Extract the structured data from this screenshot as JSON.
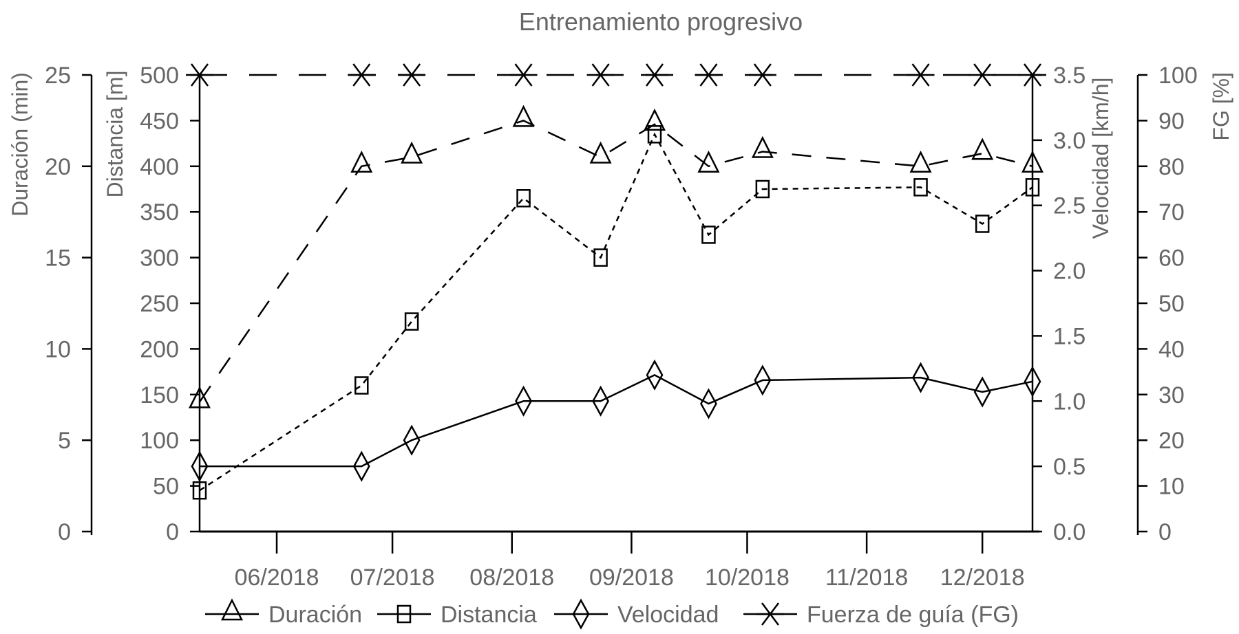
{
  "chart_data": {
    "type": "line",
    "title": "Entrenamiento progresivo",
    "x": [
      "2018-05-12",
      "2018-06-23",
      "2018-07-06",
      "2018-08-04",
      "2018-08-24",
      "2018-09-07",
      "2018-09-21",
      "2018-10-05",
      "2018-11-15",
      "2018-12-01",
      "2018-12-14"
    ],
    "xlim": [
      "2018-05-12",
      "2018-12-14"
    ],
    "xticks": [
      {
        "date": "2018-06-01",
        "label": "06/2018"
      },
      {
        "date": "2018-07-01",
        "label": "07/2018"
      },
      {
        "date": "2018-08-01",
        "label": "08/2018"
      },
      {
        "date": "2018-09-01",
        "label": "09/2018"
      },
      {
        "date": "2018-10-01",
        "label": "10/2018"
      },
      {
        "date": "2018-11-01",
        "label": "11/2018"
      },
      {
        "date": "2018-12-01",
        "label": "12/2018"
      }
    ],
    "axes": [
      {
        "id": "dur",
        "label": "Duración (min)",
        "ylim": [
          0,
          25
        ],
        "ticks": [
          "0",
          "5",
          "10",
          "15",
          "20",
          "25"
        ],
        "side": "left-outer"
      },
      {
        "id": "dist",
        "label": "Distancia [m]",
        "ylim": [
          0,
          500
        ],
        "ticks": [
          "0",
          "50",
          "100",
          "150",
          "200",
          "250",
          "300",
          "350",
          "400",
          "450",
          "500"
        ],
        "side": "left-inner"
      },
      {
        "id": "vel",
        "label": "Velocidad [km/h]",
        "ylim": [
          0,
          3.5
        ],
        "ticks": [
          "0.0",
          "0.5",
          "1.0",
          "1.5",
          "2.0",
          "2.5",
          "3.0",
          "3.5"
        ],
        "side": "right-inner"
      },
      {
        "id": "fg",
        "label": "FG [%]",
        "ylim": [
          0,
          100
        ],
        "ticks": [
          "0",
          "10",
          "20",
          "30",
          "40",
          "50",
          "60",
          "70",
          "80",
          "90",
          "100"
        ],
        "side": "right-outer"
      }
    ],
    "series": [
      {
        "name": "Duración",
        "axis": "dur",
        "marker": "triangle",
        "dash": "long",
        "values": [
          7.1,
          20,
          20.5,
          22.5,
          20.5,
          22.3,
          20,
          20.8,
          20,
          20.7,
          20
        ]
      },
      {
        "name": "Distancia",
        "axis": "dist",
        "marker": "square",
        "dash": "short",
        "values": [
          45,
          160,
          230,
          365,
          300,
          435,
          325,
          375,
          377,
          337,
          377
        ]
      },
      {
        "name": "Velocidad",
        "axis": "vel",
        "marker": "diamond",
        "dash": "solid",
        "values": [
          0.5,
          0.5,
          0.7,
          1.0,
          1.0,
          1.2,
          0.98,
          1.16,
          1.18,
          1.07,
          1.15
        ]
      },
      {
        "name": "Fuerza de guía (FG)",
        "axis": "fg",
        "marker": "x",
        "dash": "xlong",
        "values": [
          100,
          100,
          100,
          100,
          100,
          100,
          100,
          100,
          100,
          100,
          100
        ]
      }
    ],
    "legend_position": "bottom"
  }
}
